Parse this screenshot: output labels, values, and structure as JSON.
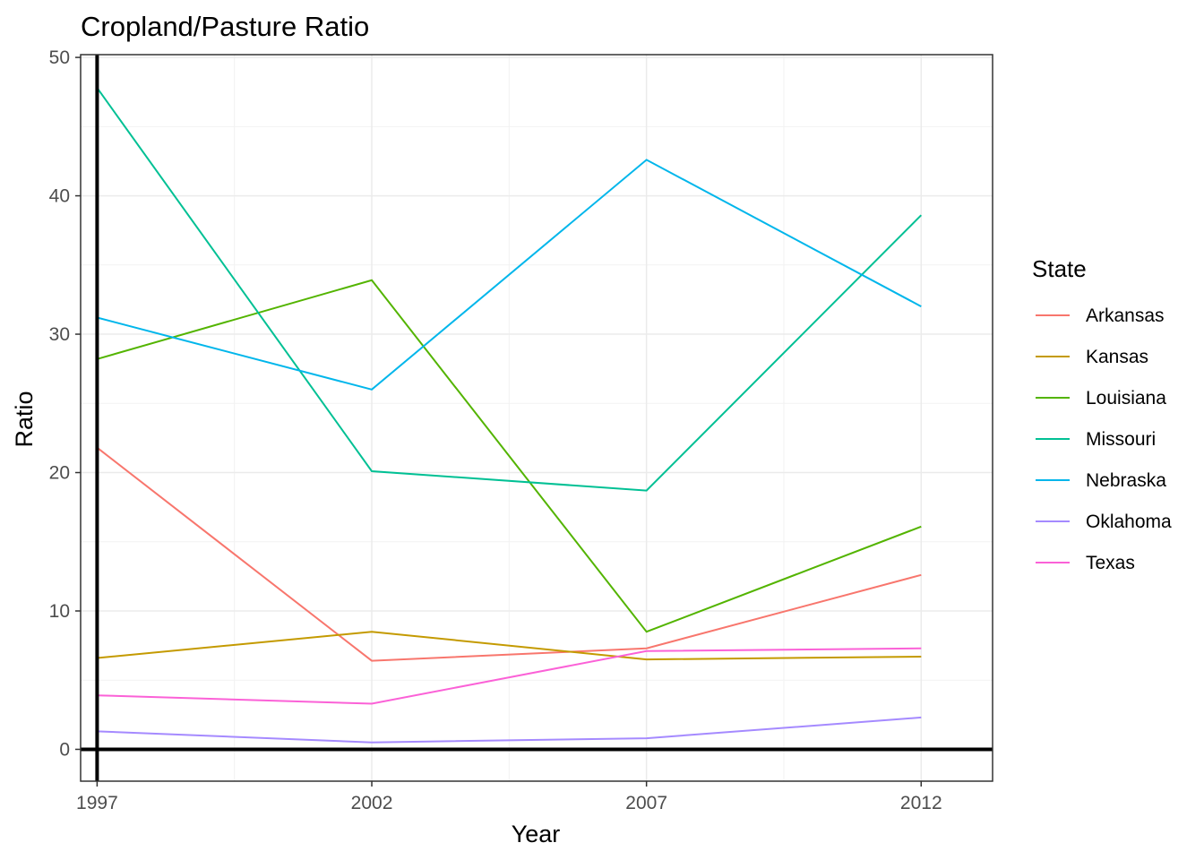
{
  "chart_data": {
    "type": "line",
    "title": "Cropland/Pasture Ratio",
    "xlabel": "Year",
    "ylabel": "Ratio",
    "x": [
      1997,
      2002,
      2007,
      2012
    ],
    "x_ticks": [
      "1997",
      "2002",
      "2007",
      "2012"
    ],
    "y_ticks": [
      "0",
      "10",
      "20",
      "30",
      "40",
      "50"
    ],
    "xlim": [
      1996.7,
      2013.3
    ],
    "ylim": [
      -2.3,
      50.2
    ],
    "grid": true,
    "legend": {
      "title": "State",
      "position": "right"
    },
    "series": [
      {
        "name": "Arkansas",
        "color": "#F8766D",
        "values": [
          21.8,
          6.4,
          7.3,
          12.6
        ]
      },
      {
        "name": "Kansas",
        "color": "#C49A00",
        "values": [
          6.6,
          8.5,
          6.5,
          6.7
        ]
      },
      {
        "name": "Louisiana",
        "color": "#53B400",
        "values": [
          28.2,
          33.9,
          8.5,
          16.1
        ]
      },
      {
        "name": "Missouri",
        "color": "#00C094",
        "values": [
          47.8,
          20.1,
          18.7,
          38.6
        ]
      },
      {
        "name": "Nebraska",
        "color": "#00B6EB",
        "values": [
          31.2,
          26.0,
          42.6,
          32.0
        ]
      },
      {
        "name": "Oklahoma",
        "color": "#A58AFF",
        "values": [
          1.3,
          0.5,
          0.8,
          2.3
        ]
      },
      {
        "name": "Texas",
        "color": "#FB61D7",
        "values": [
          3.9,
          3.3,
          7.1,
          7.3
        ]
      }
    ]
  }
}
